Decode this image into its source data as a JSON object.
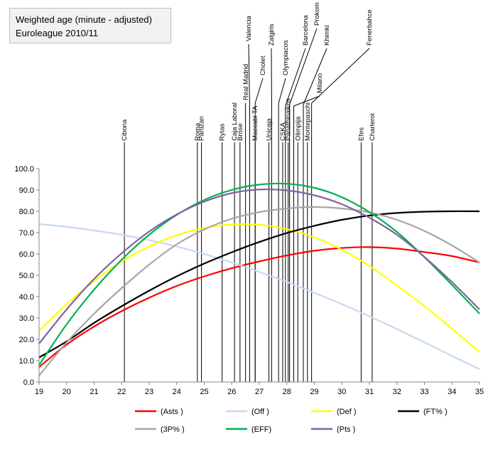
{
  "chart_data": {
    "type": "line",
    "title": "Weighted age (minute  - adjusted)",
    "subtitle": "Euroleague 2010/11",
    "xlabel": "",
    "ylabel": "",
    "xlim": [
      19,
      35
    ],
    "ylim": [
      0,
      100
    ],
    "x_ticks": [
      "19",
      "20",
      "21",
      "22",
      "23",
      "24",
      "25",
      "26",
      "27",
      "28",
      "29",
      "30",
      "31",
      "32",
      "33",
      "34",
      "35"
    ],
    "y_ticks": [
      "0.0",
      "10.0",
      "20.0",
      "30.0",
      "40.0",
      "50.0",
      "60.0",
      "70.0",
      "80.0",
      "90.0",
      "100.0"
    ],
    "grid": false,
    "legend_position": "bottom",
    "series": [
      {
        "name": "(Asts )",
        "color": "#ff0000",
        "x": [
          19,
          20,
          21,
          22,
          23,
          24,
          25,
          26,
          27,
          28,
          29,
          30,
          31,
          32,
          33,
          34,
          35
        ],
        "y": [
          7.0,
          17.5,
          26.0,
          33.2,
          39.5,
          45.0,
          49.5,
          53.3,
          56.5,
          59.3,
          61.5,
          62.8,
          63.2,
          62.5,
          60.9,
          59.0,
          56.0
        ]
      },
      {
        "name": "(Off )",
        "color": "#c6d9f0",
        "x": [
          19,
          20,
          21,
          22,
          23,
          24,
          25,
          26,
          27,
          28,
          29,
          30,
          31,
          32,
          33,
          34,
          35
        ],
        "y": [
          74.0,
          72.7,
          71.0,
          69.0,
          66.5,
          63.5,
          60.0,
          56.0,
          51.6,
          46.9,
          41.8,
          36.5,
          30.8,
          24.8,
          18.6,
          12.2,
          6.0
        ]
      },
      {
        "name": "(Def )",
        "color": "#ffff00",
        "x": [
          19,
          20,
          21,
          22,
          23,
          24,
          25,
          26,
          27,
          28,
          29,
          30,
          31,
          32,
          33,
          34,
          35
        ],
        "y": [
          24.0,
          36.5,
          47.3,
          56.5,
          63.5,
          68.8,
          72.2,
          73.8,
          73.7,
          71.6,
          67.8,
          62.0,
          54.4,
          45.2,
          35.5,
          25.0,
          14.0
        ]
      },
      {
        "name": "(FT% )",
        "color": "#000000",
        "x": [
          19,
          20,
          21,
          22,
          23,
          24,
          25,
          26,
          27,
          28,
          29,
          30,
          31,
          32,
          33,
          34,
          35
        ],
        "y": [
          11.5,
          19.0,
          27.7,
          35.5,
          42.8,
          49.5,
          55.5,
          60.8,
          65.6,
          69.8,
          73.2,
          76.0,
          78.0,
          79.2,
          79.8,
          80.0,
          80.0
        ]
      },
      {
        "name": "(3P% )",
        "color": "#a6a6a6",
        "x": [
          19,
          20,
          21,
          22,
          23,
          24,
          25,
          26,
          27,
          28,
          29,
          30,
          31,
          32,
          33,
          34,
          35
        ],
        "y": [
          3.0,
          18.5,
          32.0,
          44.0,
          55.0,
          64.5,
          71.5,
          76.5,
          79.6,
          81.3,
          82.0,
          81.3,
          79.5,
          76.0,
          70.8,
          64.0,
          56.0
        ]
      },
      {
        "name": "(EFF)",
        "color": "#00b050",
        "x": [
          19,
          20,
          21,
          22,
          23,
          24,
          25,
          26,
          27,
          28,
          29,
          30,
          31,
          32,
          33,
          34,
          35
        ],
        "y": [
          8.0,
          27.0,
          43.3,
          57.3,
          69.0,
          78.3,
          85.3,
          90.0,
          92.5,
          92.9,
          91.0,
          86.6,
          79.6,
          70.3,
          58.5,
          45.5,
          32.0
        ]
      },
      {
        "name": "(Pts )",
        "color": "#8064a2",
        "x": [
          19,
          20,
          21,
          22,
          23,
          24,
          25,
          26,
          27,
          28,
          29,
          30,
          31,
          32,
          33,
          34,
          35
        ],
        "y": [
          18.0,
          34.0,
          48.3,
          60.3,
          70.5,
          78.5,
          84.5,
          88.5,
          90.2,
          89.8,
          87.5,
          83.3,
          77.0,
          69.0,
          58.6,
          46.8,
          34.0
        ]
      }
    ],
    "team_markers": [
      {
        "team": "Cibona",
        "age": 22.1
      },
      {
        "team": "Roma",
        "age": 24.75
      },
      {
        "team": "Partizan",
        "age": 24.9
      },
      {
        "team": "Rytas",
        "age": 25.65
      },
      {
        "team": "Caja Laboral",
        "age": 26.1
      },
      {
        "team": "Brose",
        "age": 26.3
      },
      {
        "team": "Real Madrid",
        "age": 26.5
      },
      {
        "team": "Valencia",
        "age": 26.65
      },
      {
        "team": "Maccabi TA",
        "age": 26.85
      },
      {
        "team": "Cholet",
        "age": 26.85
      },
      {
        "team": "Unicaja",
        "age": 27.35
      },
      {
        "team": "Zalgiris",
        "age": 27.45
      },
      {
        "team": "Olympiacos",
        "age": 27.7
      },
      {
        "team": "CSKA",
        "age": 27.85
      },
      {
        "team": "Barcelona",
        "age": 27.95
      },
      {
        "team": "Panathinaikos",
        "age": 28.05
      },
      {
        "team": "Prokom",
        "age": 28.1
      },
      {
        "team": "Milano",
        "age": 28.25
      },
      {
        "team": "Olimpija",
        "age": 28.4
      },
      {
        "team": "Khimki",
        "age": 28.6
      },
      {
        "team": "Montepaschi",
        "age": 28.75
      },
      {
        "team": "Fenerbahce",
        "age": 28.9
      },
      {
        "team": "Efes",
        "age": 30.7
      },
      {
        "team": "Charleroi",
        "age": 31.1
      }
    ]
  }
}
